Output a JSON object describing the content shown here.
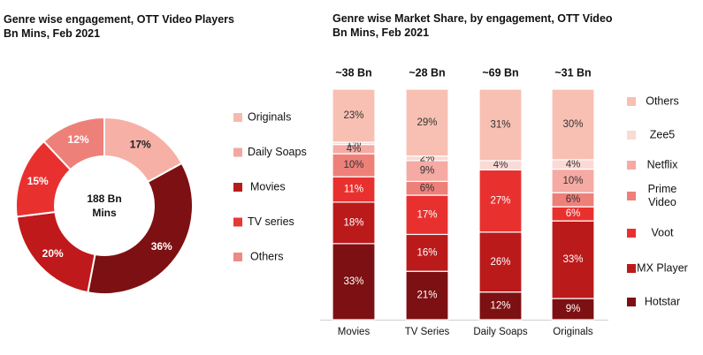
{
  "chart_data": [
    {
      "type": "pie",
      "title": "Genre wise engagement, OTT Video Players\nBn Mins, Feb 2021",
      "center_label": [
        "188 Bn",
        "Mins"
      ],
      "slices": [
        {
          "name": "Originals",
          "value": 17,
          "label": "17%",
          "color": "#f6b0a6"
        },
        {
          "name": "Daily Soaps",
          "value": 36,
          "label": "36%",
          "color": "#7d1012"
        },
        {
          "name": "Movies",
          "value": 20,
          "label": "20%",
          "color": "#c0191b"
        },
        {
          "name": "TV series",
          "value": 15,
          "label": "15%",
          "color": "#e8312f"
        },
        {
          "name": "Others",
          "value": 12,
          "label": "12%",
          "color": "#ee807a"
        }
      ],
      "legend": [
        {
          "name": "Originals",
          "color": "#f7b9ae"
        },
        {
          "name": "Daily Soaps",
          "color": "#f2a7a2"
        },
        {
          "name": "Movies",
          "color": "#b71c1c"
        },
        {
          "name": "TV series",
          "color": "#e53935"
        },
        {
          "name": "Others",
          "color": "#ee8a84"
        }
      ],
      "legend_placement": "right"
    },
    {
      "type": "bar",
      "stacked": true,
      "title": "Genre wise Market Share, by engagement, OTT Video\nBn Mins,  Feb 2021",
      "categories": [
        "Movies",
        "TV Series",
        "Daily Soaps",
        "Originals"
      ],
      "totals": [
        "~38 Bn",
        "~28 Bn",
        "~69 Bn",
        "~31 Bn"
      ],
      "ylim": [
        0,
        100
      ],
      "series": [
        {
          "name": "Hotstar",
          "color": "#7d1012",
          "values": [
            33,
            21,
            12,
            9
          ]
        },
        {
          "name": "MX Player",
          "color": "#bb1a1b",
          "values": [
            18,
            16,
            26,
            33
          ]
        },
        {
          "name": "Voot",
          "color": "#e8312f",
          "values": [
            11,
            17,
            27,
            6
          ]
        },
        {
          "name": "Prime Video",
          "color": "#ee807a",
          "values": [
            10,
            6,
            0,
            6
          ]
        },
        {
          "name": "Netflix",
          "color": "#f5aaa3",
          "values": [
            4,
            9,
            0,
            10
          ]
        },
        {
          "name": "Zee5",
          "color": "#fbd9d4",
          "values": [
            1,
            2,
            4,
            4
          ]
        },
        {
          "name": "Others",
          "color": "#f8c0b2",
          "values": [
            23,
            29,
            31,
            30
          ]
        }
      ],
      "value_labels": [
        [
          "33%",
          "18%",
          "11%",
          "10%",
          "4%",
          "1%",
          "23%"
        ],
        [
          "21%",
          "16%",
          "17%",
          "6%",
          "9%",
          "2%",
          "29%"
        ],
        [
          "12%",
          "26%",
          "27%",
          "",
          "",
          "4%",
          "31%"
        ],
        [
          "9%",
          "33%",
          "6%",
          "6%",
          "10%",
          "4%",
          "30%"
        ]
      ],
      "legend_order": [
        "Others",
        "Zee5",
        "Netflix",
        "Prime Video",
        "Voot",
        "MX Player",
        "Hotstar"
      ],
      "legend_placement": "right"
    }
  ]
}
